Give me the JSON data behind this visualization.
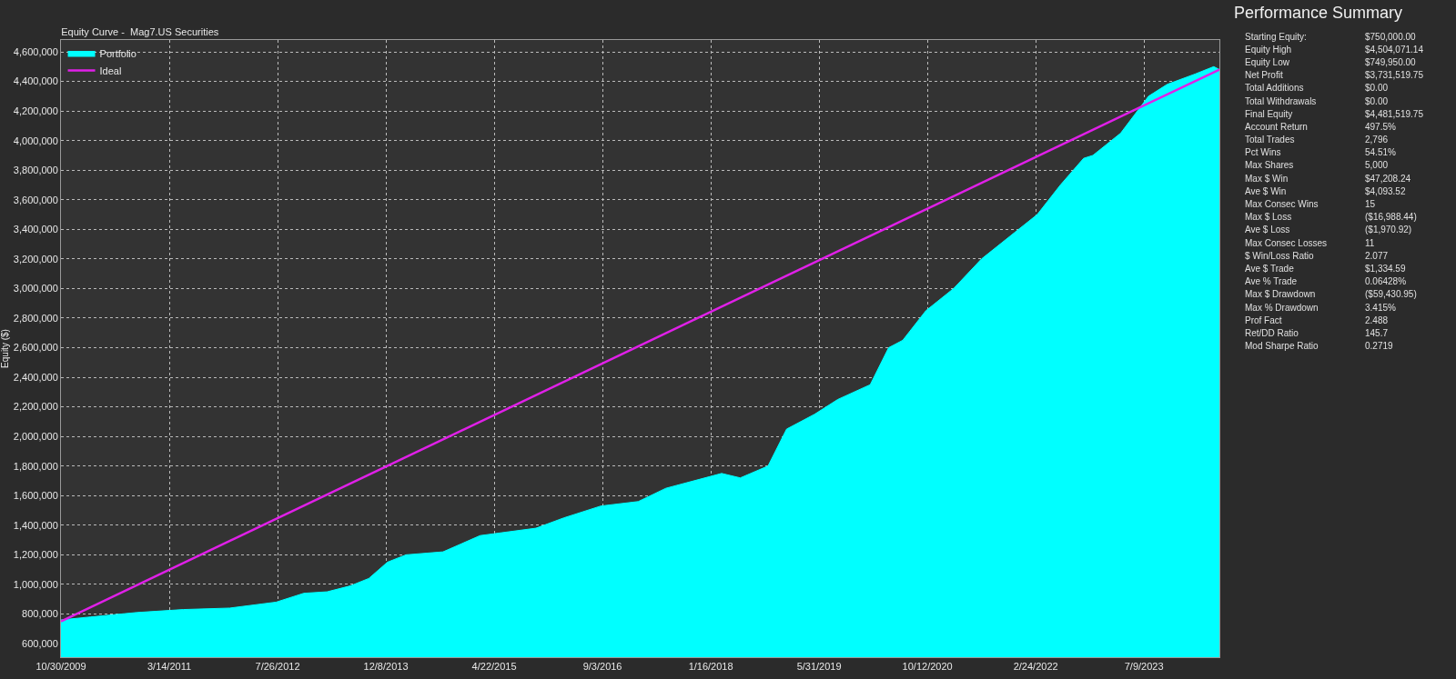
{
  "chart_data": [
    {
      "type": "area",
      "title": "Equity Curve -  Mag7.US Securities",
      "ylabel": "Equity ($)",
      "grid": true,
      "legend": "top left",
      "marker": "none",
      "xlim": [
        "2009-10-30",
        "2024-06-21"
      ],
      "ylim": [
        508000,
        4680000
      ],
      "xticks": [
        {
          "value": "2009-10-30",
          "label": "10/30/2009"
        },
        {
          "value": "2011-03-14",
          "label": "3/14/2011"
        },
        {
          "value": "2012-07-26",
          "label": "7/26/2012"
        },
        {
          "value": "2013-12-08",
          "label": "12/8/2013"
        },
        {
          "value": "2015-04-22",
          "label": "4/22/2015"
        },
        {
          "value": "2016-09-03",
          "label": "9/3/2016"
        },
        {
          "value": "2018-01-16",
          "label": "1/16/2018"
        },
        {
          "value": "2019-05-31",
          "label": "5/31/2019"
        },
        {
          "value": "2020-10-12",
          "label": "10/12/2020"
        },
        {
          "value": "2022-02-24",
          "label": "2/24/2022"
        },
        {
          "value": "2023-07-09",
          "label": "7/9/2023"
        }
      ],
      "yticks": [
        {
          "value": 600000,
          "label": "600,000"
        },
        {
          "value": 800000,
          "label": "800,000"
        },
        {
          "value": 1000000,
          "label": "1,000,000"
        },
        {
          "value": 1200000,
          "label": "1,200,000"
        },
        {
          "value": 1400000,
          "label": "1,400,000"
        },
        {
          "value": 1600000,
          "label": "1,600,000"
        },
        {
          "value": 1800000,
          "label": "1,800,000"
        },
        {
          "value": 2000000,
          "label": "2,000,000"
        },
        {
          "value": 2200000,
          "label": "2,200,000"
        },
        {
          "value": 2400000,
          "label": "2,400,000"
        },
        {
          "value": 2600000,
          "label": "2,600,000"
        },
        {
          "value": 2800000,
          "label": "2,800,000"
        },
        {
          "value": 3000000,
          "label": "3,000,000"
        },
        {
          "value": 3200000,
          "label": "3,200,000"
        },
        {
          "value": 3400000,
          "label": "3,400,000"
        },
        {
          "value": 3600000,
          "label": "3,600,000"
        },
        {
          "value": 3800000,
          "label": "3,800,000"
        },
        {
          "value": 4000000,
          "label": "4,000,000"
        },
        {
          "value": 4200000,
          "label": "4,200,000"
        },
        {
          "value": 4400000,
          "label": "4,400,000"
        },
        {
          "value": 4600000,
          "label": "4,600,000"
        }
      ],
      "series": [
        {
          "name": "Portfolio",
          "color": "#00ffff",
          "x": [
            "2009-10-30",
            "2010-03-16",
            "2010-10-16",
            "2011-05-18",
            "2011-12-18",
            "2012-07-19",
            "2012-11-24",
            "2013-03-12",
            "2013-06-27",
            "2013-09-20",
            "2013-12-15",
            "2014-03-11",
            "2014-08-29",
            "2015-02-16",
            "2015-11-01",
            "2016-03-09",
            "2016-08-27",
            "2017-02-15",
            "2017-06-23",
            "2018-03-07",
            "2018-06-01",
            "2018-10-07",
            "2019-01-01",
            "2019-05-10",
            "2019-08-25",
            "2020-01-22",
            "2020-04-16",
            "2020-06-20",
            "2020-10-05",
            "2021-02-10",
            "2021-06-19",
            "2021-12-07",
            "2022-03-03",
            "2022-06-18",
            "2022-10-03",
            "2022-11-15",
            "2023-03-23",
            "2023-07-30",
            "2023-10-24",
            "2024-03-01",
            "2024-05-26",
            "2024-06-21"
          ],
          "values": [
            760000,
            780000,
            810000,
            830000,
            840000,
            880000,
            940000,
            950000,
            990000,
            1040000,
            1150000,
            1200000,
            1220000,
            1330000,
            1380000,
            1450000,
            1530000,
            1560000,
            1650000,
            1750000,
            1720000,
            1800000,
            2050000,
            2150000,
            2250000,
            2350000,
            2600000,
            2650000,
            2850000,
            3000000,
            3200000,
            3400000,
            3500000,
            3700000,
            3880000,
            3900000,
            4050000,
            4300000,
            4380000,
            4450000,
            4500000,
            4480000
          ]
        },
        {
          "name": "Ideal",
          "type": "line",
          "color": "#e020e8",
          "x": [
            "2009-10-30",
            "2024-06-21"
          ],
          "values": [
            750000,
            4480000
          ]
        }
      ]
    },
    {
      "type": "other",
      "title": "Performance Summary",
      "annotations": [
        "Starting Equity:",
        "$750,000.00",
        "Equity High",
        "$4,504,071.14",
        "Equity Low",
        "$749,950.00",
        "Net Profit",
        "$3,731,519.75",
        "Total Additions",
        "$0.00",
        "Total Withdrawals",
        "$0.00",
        "Final Equity",
        "$4,481,519.75",
        "Account Return",
        "497.5%",
        "Total Trades",
        "2,796",
        "Pct Wins",
        "54.51%",
        "Max Shares",
        "5,000",
        "Max $ Win",
        "$47,208.24",
        "Ave $ Win",
        "$4,093.52",
        "Max Consec Wins",
        "15",
        "Max $ Loss",
        "($16,988.44)",
        "Ave $ Loss",
        "($1,970.92)",
        "Max Consec Losses",
        "11",
        "$ Win/Loss Ratio",
        "2.077",
        "Ave $ Trade",
        "$1,334.59",
        "Ave % Trade",
        "0.06428%",
        "Max $ Drawdown",
        "($59,430.95)",
        "Max % Drawdown",
        "3.415%",
        "Prof Fact",
        "2.488",
        "Ret/DD Ratio",
        "145.7",
        "Mod Sharpe Ratio",
        "0.2719"
      ]
    }
  ]
}
